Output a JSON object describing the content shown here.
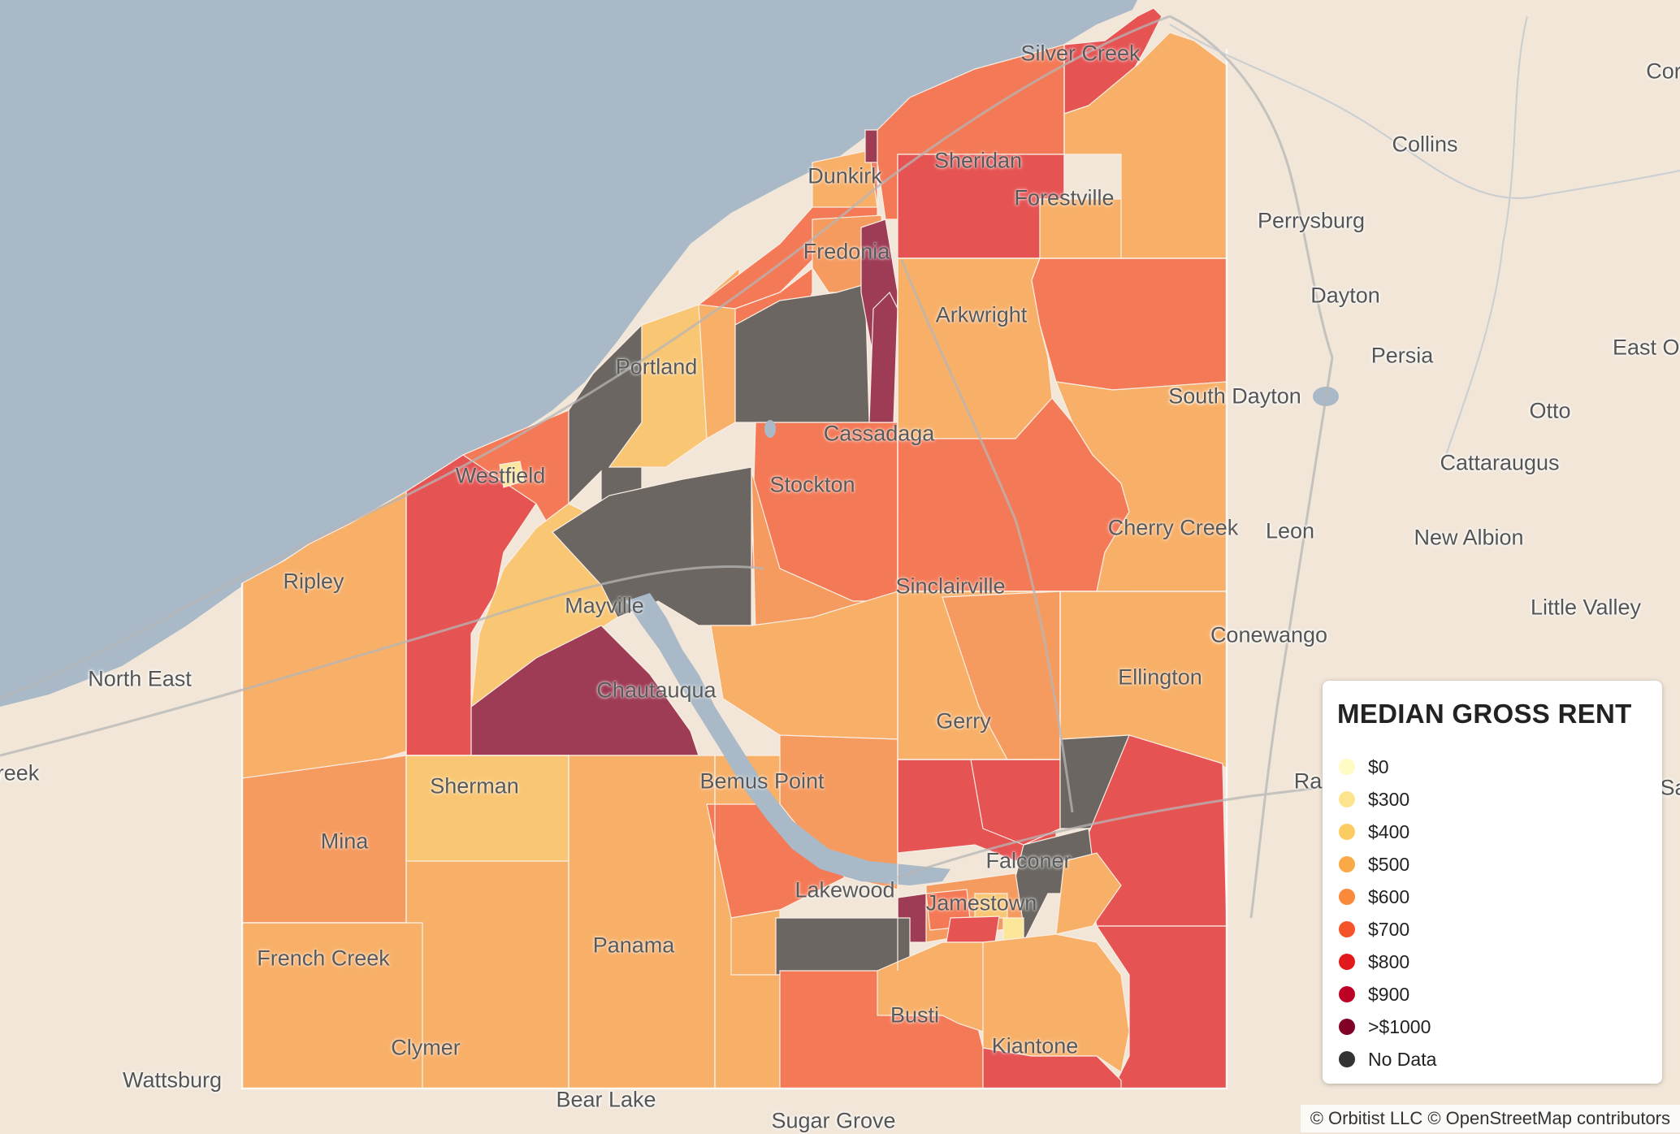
{
  "map": {
    "colors": {
      "water": "#a9b9c7",
      "land": "#f1e6d8",
      "no_data": "#6b6661",
      "rent_300": "#fbe69a",
      "rent_400": "#f9c774",
      "rent_500": "#f8b069",
      "rent_600": "#f69b5f",
      "rent_700": "#f47a57",
      "rent_800": "#e65353",
      "rent_900": "#d32f47",
      "rent_1000": "#9e3b55"
    },
    "places": {
      "silver_creek": "Silver Creek",
      "collins": "Collins",
      "sheridan": "Sheridan",
      "dunkirk": "Dunkirk",
      "forestville": "Forestville",
      "perrysburg": "Perrysburg",
      "fredonia": "Fredonia",
      "dayton": "Dayton",
      "arkwright": "Arkwright",
      "portland": "Portland",
      "persia": "Persia",
      "east_otto": "East Ot",
      "south_dayton": "South Dayton",
      "otto": "Otto",
      "cassadaga": "Cassadaga",
      "westfield": "Westfield",
      "cattaraugus": "Cattaraugus",
      "stockton": "Stockton",
      "leon": "Leon",
      "cherry_creek": "Cherry Creek",
      "new_albion": "New Albion",
      "ripley": "Ripley",
      "sinclairville": "Sinclairville",
      "little_valley": "Little Valley",
      "mayville": "Mayville",
      "conewango": "Conewango",
      "north_east": "North East",
      "ellington": "Ellington",
      "chautauqua": "Chautauqua",
      "gerry": "Gerry",
      "reek": "reek",
      "sherman": "Sherman",
      "bemus_point": "Bemus Point",
      "ra": "Ra",
      "sa": "Sa",
      "mina": "Mina",
      "falconer": "Falconer",
      "lakewood": "Lakewood",
      "jamestown": "Jamestown",
      "panama": "Panama",
      "french_creek": "French Creek",
      "busti": "Busti",
      "clymer": "Clymer",
      "kiantone": "Kiantone",
      "wattsburg": "Wattsburg",
      "bear_lake": "Bear Lake",
      "sugar_grove": "Sugar Grove",
      "cor": "Cor"
    }
  },
  "legend": {
    "title": "MEDIAN GROSS RENT",
    "items": [
      {
        "label": "$0",
        "color": "#fffbc4"
      },
      {
        "label": "$300",
        "color": "#fde58f"
      },
      {
        "label": "$400",
        "color": "#fccb62"
      },
      {
        "label": "$500",
        "color": "#fba946"
      },
      {
        "label": "$600",
        "color": "#fa8a3b"
      },
      {
        "label": "$700",
        "color": "#f45428"
      },
      {
        "label": "$800",
        "color": "#e31a1c"
      },
      {
        "label": "$900",
        "color": "#bd0026"
      },
      {
        "label": ">$1000",
        "color": "#800026"
      },
      {
        "label": "No Data",
        "color": "#333333"
      }
    ]
  },
  "attribution": "© Orbitist LLC © OpenStreetMap contributors"
}
